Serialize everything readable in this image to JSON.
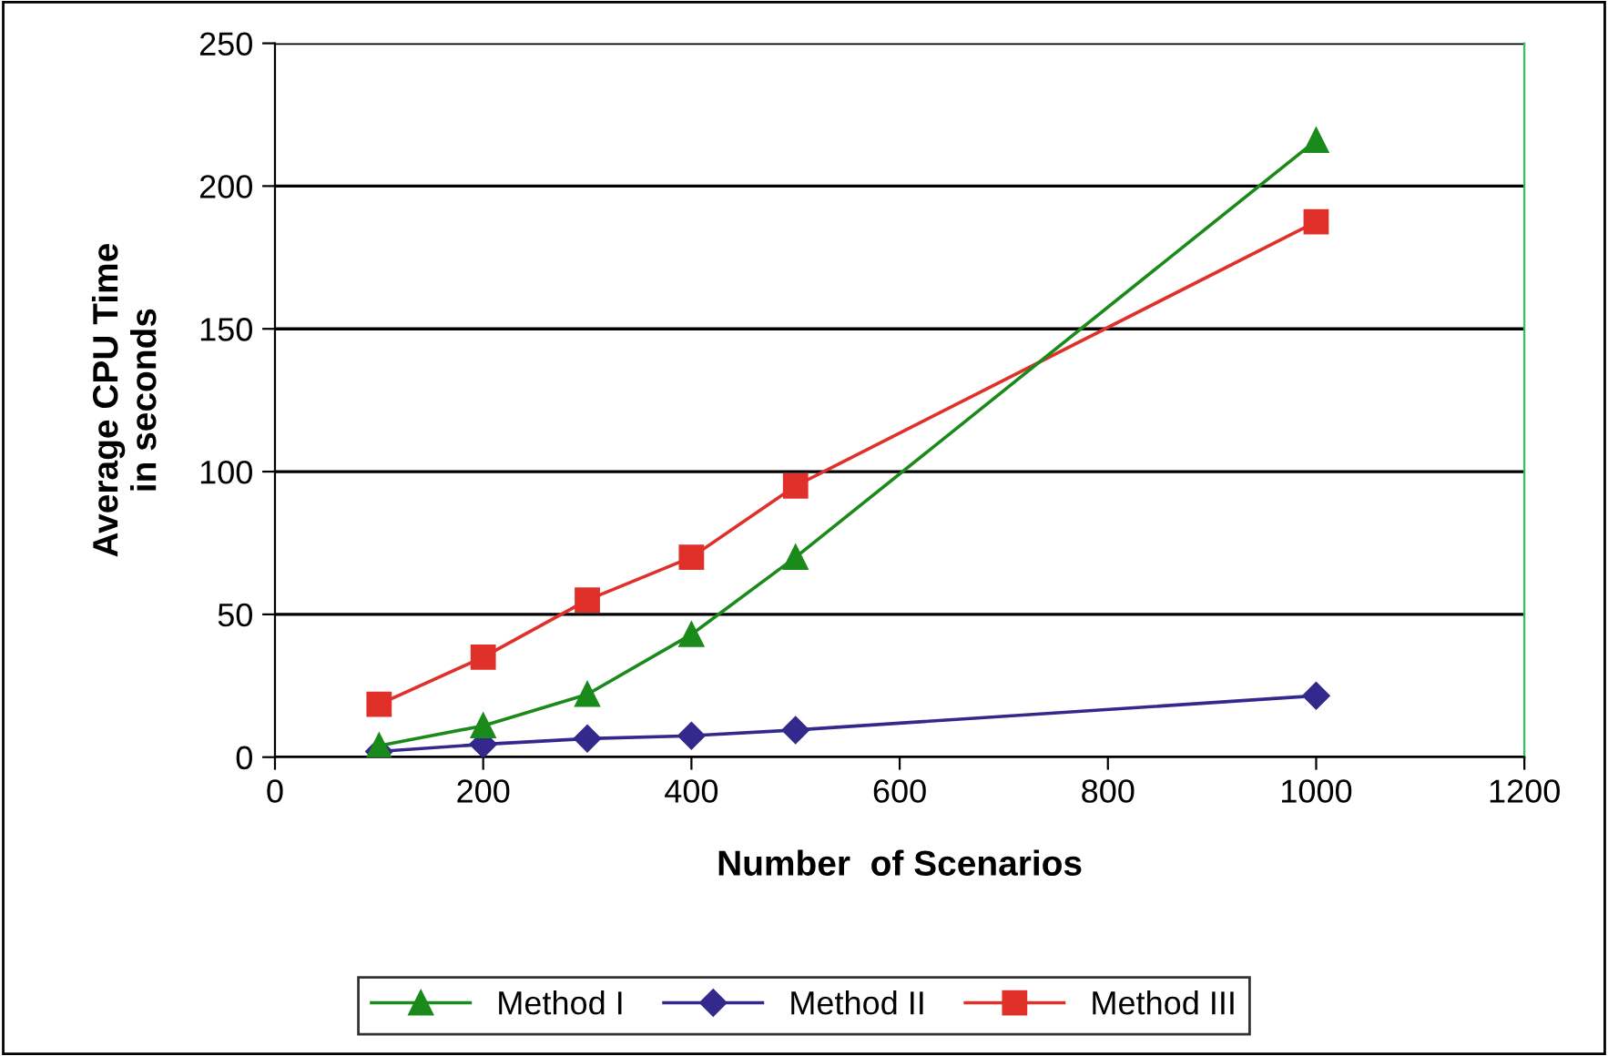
{
  "chart_data": {
    "type": "line",
    "xlabel": "Number  of Scenarios",
    "ylabel": "Average CPU Time\nin seconds",
    "x": [
      100,
      200,
      300,
      400,
      500,
      1000
    ],
    "series": [
      {
        "name": "Method I",
        "color": "#1a8a1a",
        "marker": "triangle",
        "values": [
          4,
          11,
          22,
          43,
          70,
          216
        ]
      },
      {
        "name": "Method II",
        "color": "#33288c",
        "marker": "diamond",
        "values": [
          2,
          4.5,
          6.5,
          7.5,
          9.5,
          21.5
        ]
      },
      {
        "name": "Method III",
        "color": "#e0302a",
        "marker": "square",
        "values": [
          18.5,
          35,
          55,
          70,
          95,
          187.5
        ]
      }
    ],
    "xlim": [
      0,
      1200
    ],
    "xticks": [
      0,
      200,
      400,
      600,
      800,
      1000,
      1200
    ],
    "ylim": [
      0,
      250
    ],
    "yticks": [
      0,
      50,
      100,
      150,
      200,
      250
    ],
    "grid": "y",
    "legend": "bottom",
    "line_style": "solid"
  }
}
